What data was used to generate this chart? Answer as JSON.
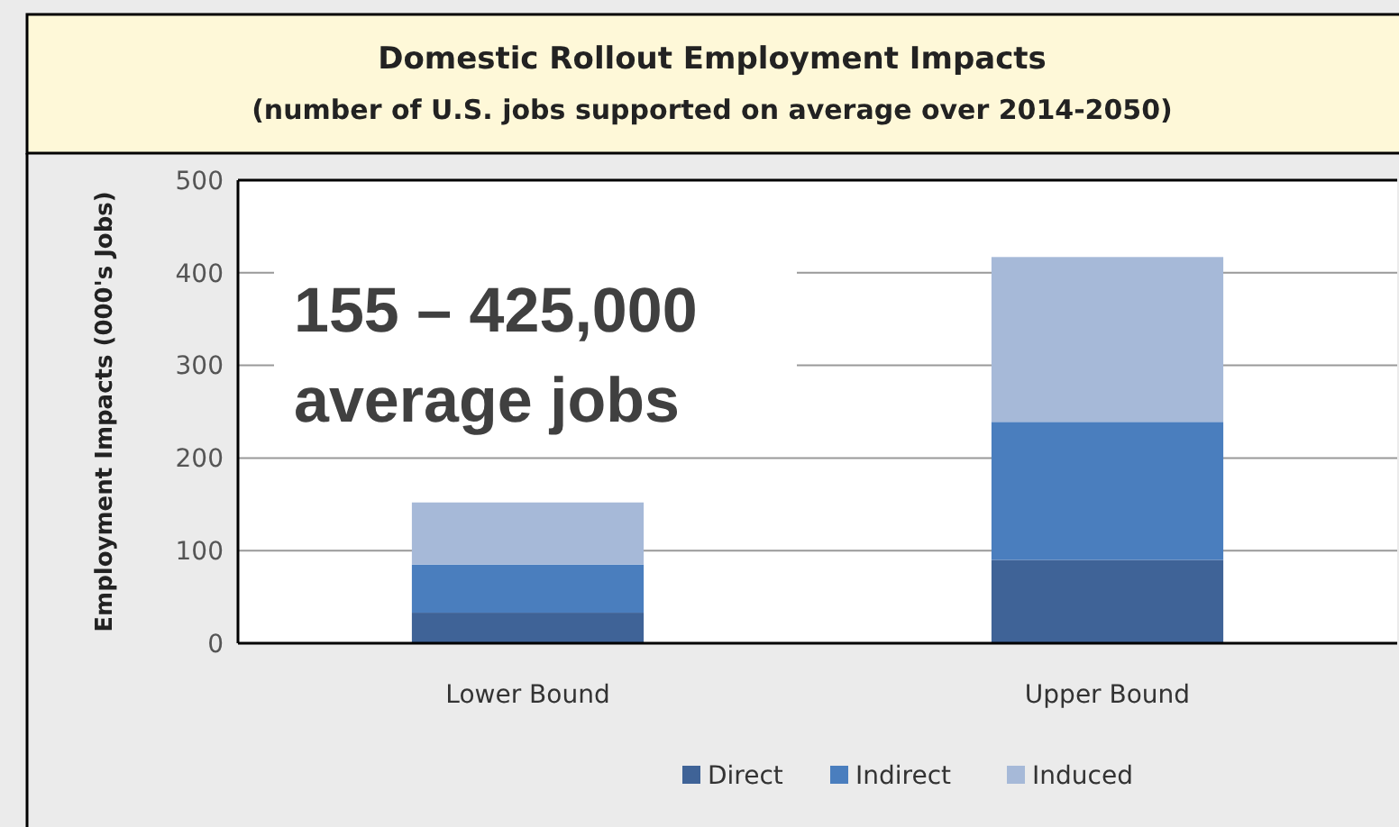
{
  "chart_data": {
    "type": "bar",
    "title": "Domestic Rollout Employment Impacts",
    "subtitle": "(number of U.S. jobs supported on average over 2014-2050)",
    "ylabel": "Employment Impacts (000's Jobs)",
    "categories": [
      "Lower Bound",
      "Upper Bound"
    ],
    "stacked": true,
    "series": [
      {
        "name": "Direct",
        "color": "#3f6397",
        "values": [
          33,
          90
        ]
      },
      {
        "name": "Indirect",
        "color": "#4a7ebe",
        "values": [
          52,
          149
        ]
      },
      {
        "name": "Induced",
        "color": "#a6b9d8",
        "values": [
          67,
          178
        ]
      }
    ],
    "ylim": [
      0,
      500
    ],
    "yticks": [
      0,
      100,
      200,
      300,
      400,
      500
    ],
    "grid": "y",
    "legend": "bottom",
    "annotations": [
      "155 – 425,000 average jobs"
    ]
  }
}
